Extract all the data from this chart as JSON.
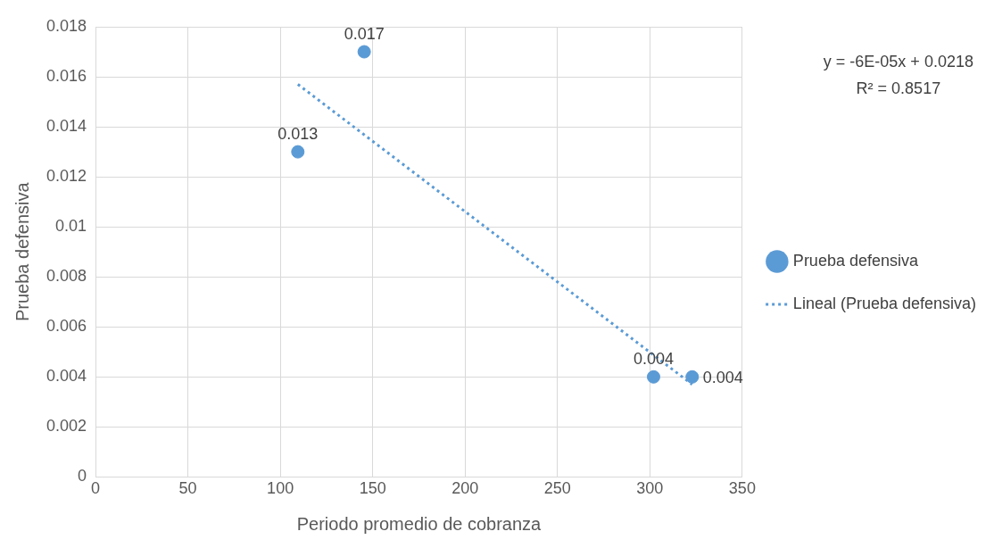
{
  "chart_data": {
    "type": "scatter",
    "xlabel": "Periodo promedio de cobranza",
    "ylabel": "Prueba defensiva",
    "x": [
      109.5,
      145.4,
      302,
      322.9
    ],
    "series": [
      {
        "name": "Prueba defensiva",
        "color": "#5b9bd5",
        "values": [
          0.013,
          0.017,
          0.004,
          0.004
        ],
        "value_labels": [
          "0.013",
          "0.017",
          "0.004",
          "0.004"
        ],
        "marker": "circle"
      },
      {
        "name": "Lineal (Prueba defensiva)",
        "type": "line",
        "color": "#5b9bd5",
        "x": [
          109.5,
          322.9
        ],
        "values": [
          0.0157,
          0.0037
        ],
        "line_style": "dotted",
        "marker": "none"
      }
    ],
    "annotations": [
      "y = -6E-05x + 0.0218",
      "R² = 0.8517"
    ],
    "xlim": [
      0,
      350
    ],
    "xticks": [
      0,
      50,
      100,
      150,
      200,
      250,
      300,
      350
    ],
    "ylim": [
      0,
      0.018
    ],
    "yticks": [
      0,
      0.002,
      0.004,
      0.006,
      0.008,
      0.01,
      0.012,
      0.014,
      0.016,
      0.018
    ],
    "grid": true,
    "legend": "right"
  }
}
